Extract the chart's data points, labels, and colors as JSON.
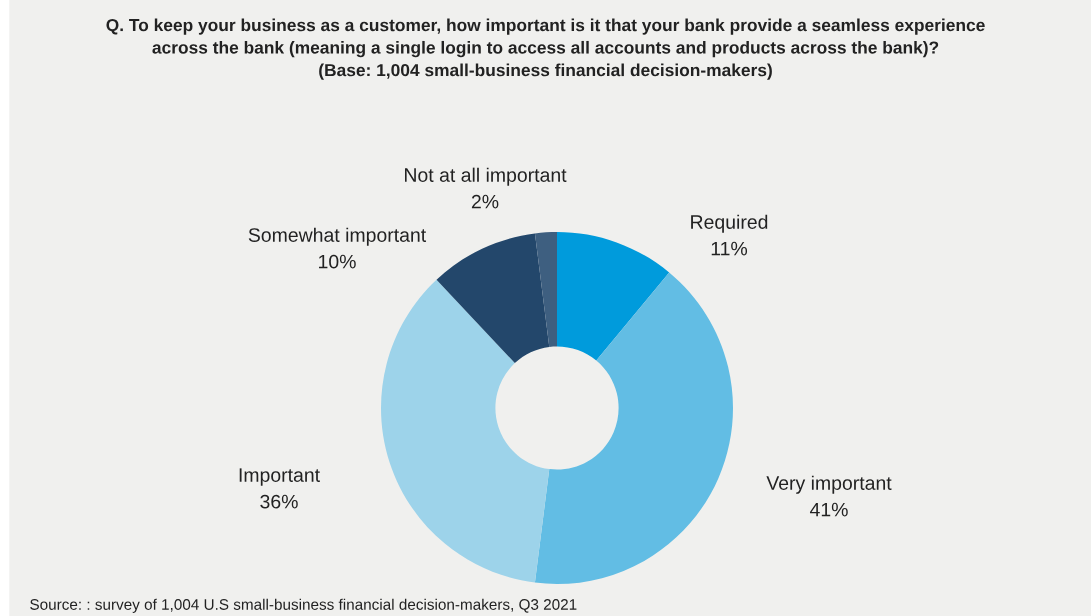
{
  "chart_data": {
    "type": "donut",
    "title": "Q. To keep your business as a customer, how important is it that your bank provide a seamless experience\nacross the bank (meaning a single login to access all accounts and products across the bank)?\n(Base: 1,004 small-business financial decision-makers)",
    "categories": [
      "Required",
      "Very important",
      "Important",
      "Somewhat important",
      "Not at all important"
    ],
    "values": [
      11,
      41,
      36,
      10,
      2
    ],
    "value_labels": [
      "11%",
      "41%",
      "36%",
      "10%",
      "2%"
    ],
    "colors": [
      "#009bdc",
      "#62bde4",
      "#9dd3ea",
      "#23476b",
      "#3e5f80"
    ],
    "annotations": [
      "Source: : survey of 1,004 U.S small-business financial decision-makers, Q3 2021"
    ],
    "legend": false
  }
}
